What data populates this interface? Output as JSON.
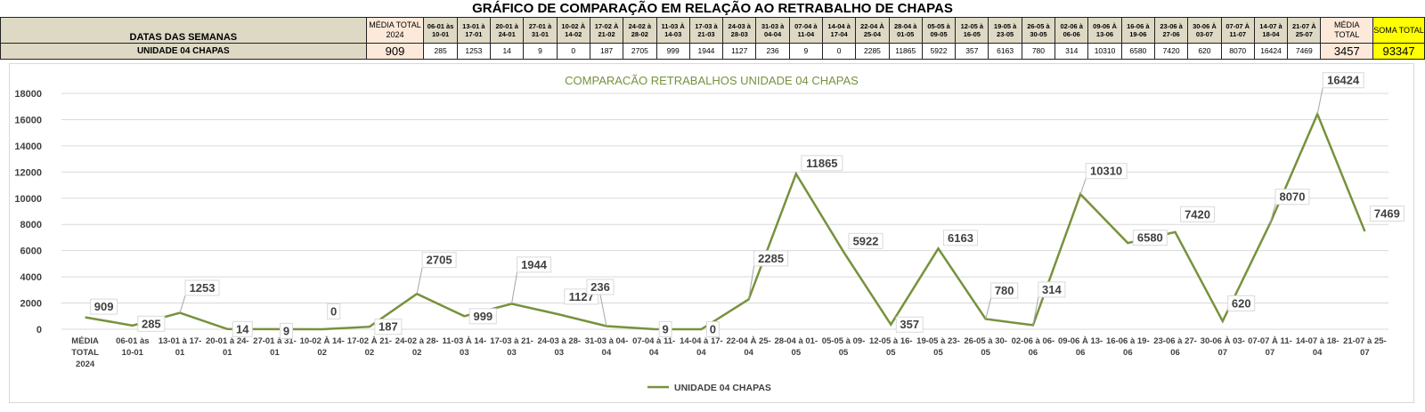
{
  "sheet": {
    "title": "GRÁFICO DE COMPARAÇÃO EM RELAÇÃO AO RETRABALHO DE CHAPAS",
    "row_header_label": "DATAS DAS SEMANAS",
    "row_label": "UNIDADE 04 CHAPAS",
    "avg_total_2024_label": "MÉDIA TOTAL 2024",
    "avg_total_2024_value": "909",
    "weeks": [
      "06-01 às 10-01",
      "13-01 à 17-01",
      "20-01 à 24-01",
      "27-01 à 31-01",
      "10-02 À 14-02",
      "17-02 À 21-02",
      "24-02 à 28-02",
      "11-03 À 14-03",
      "17-03 à 21-03",
      "24-03 à 28-03",
      "31-03 à 04-04",
      "07-04 à 11-04",
      "14-04 à 17-04",
      "22-04 À 25-04",
      "28-04 à 01-05",
      "05-05 à 09-05",
      "12-05 à 16-05",
      "19-05 à 23-05",
      "26-05 à 30-05",
      "02-06 à 06-06",
      "09-06 À 13-06",
      "16-06 à 19-06",
      "23-06 à 27-06",
      "30-06 À 03-07",
      "07-07 À 11-07",
      "14-07 à 18-04",
      "21-07 À 25-07"
    ],
    "week_values": [
      "285",
      "1253",
      "14",
      "9",
      "0",
      "187",
      "2705",
      "999",
      "1944",
      "1127",
      "236",
      "9",
      "0",
      "2285",
      "11865",
      "5922",
      "357",
      "6163",
      "780",
      "314",
      "10310",
      "6580",
      "7420",
      "620",
      "8070",
      "16424",
      "7469"
    ],
    "avg_total_label": "MÉDIA TOTAL",
    "avg_total_value": "3457",
    "sum_total_label": "SOMA TOTAL",
    "sum_total_value": "93347"
  },
  "colors": {
    "line": "#76923c",
    "table_header_bg": "#ddd9c4",
    "avg_bg": "#fde9d9",
    "sum_bg": "#ffff00"
  },
  "chart_data": {
    "type": "line",
    "title": "COMPARACÃO RETRABALHOS UNIDADE 04 CHAPAS",
    "xlabel": "",
    "ylabel": "",
    "ylim": [
      0,
      18000
    ],
    "yticks": [
      0,
      2000,
      4000,
      6000,
      8000,
      10000,
      12000,
      14000,
      16000,
      18000
    ],
    "grid": true,
    "legend_position": "bottom",
    "categories": [
      [
        "MÉDIA",
        "TOTAL",
        "2024"
      ],
      [
        "06-01 às",
        "10-01"
      ],
      [
        "13-01 à 17-",
        "01"
      ],
      [
        "20-01 à 24-",
        "01"
      ],
      [
        "27-01 à 31-",
        "01"
      ],
      [
        "10-02 À 14-",
        "02"
      ],
      [
        "17-02 À 21-",
        "02"
      ],
      [
        "24-02 à 28-",
        "02"
      ],
      [
        "11-03 À 14-",
        "03"
      ],
      [
        "17-03 à 21-",
        "03"
      ],
      [
        "24-03 à 28-",
        "03"
      ],
      [
        "31-03 à 04-",
        "04"
      ],
      [
        "07-04 à 11-",
        "04"
      ],
      [
        "14-04 à 17-",
        "04"
      ],
      [
        "22-04 À 25-",
        "04"
      ],
      [
        "28-04 à 01-",
        "05"
      ],
      [
        "05-05 à 09-",
        "05"
      ],
      [
        "12-05 à 16-",
        "05"
      ],
      [
        "19-05 à 23-",
        "05"
      ],
      [
        "26-05 à 30-",
        "05"
      ],
      [
        "02-06 à 06-",
        "06"
      ],
      [
        "09-06 À 13-",
        "06"
      ],
      [
        "16-06 à 19-",
        "06"
      ],
      [
        "23-06 à 27-",
        "06"
      ],
      [
        "30-06 À 03-",
        "07"
      ],
      [
        "07-07 À 11-",
        "07"
      ],
      [
        "14-07 à 18-",
        "04"
      ],
      [
        "21-07 à 25-",
        "07"
      ]
    ],
    "series": [
      {
        "name": "UNIDADE 04 CHAPAS",
        "color": "#76923c",
        "values": [
          909,
          285,
          1253,
          14,
          9,
          0,
          187,
          2705,
          999,
          1944,
          1127,
          236,
          9,
          0,
          2285,
          11865,
          5922,
          357,
          6163,
          780,
          314,
          10310,
          6580,
          7420,
          620,
          8070,
          16424,
          7469
        ]
      }
    ]
  }
}
